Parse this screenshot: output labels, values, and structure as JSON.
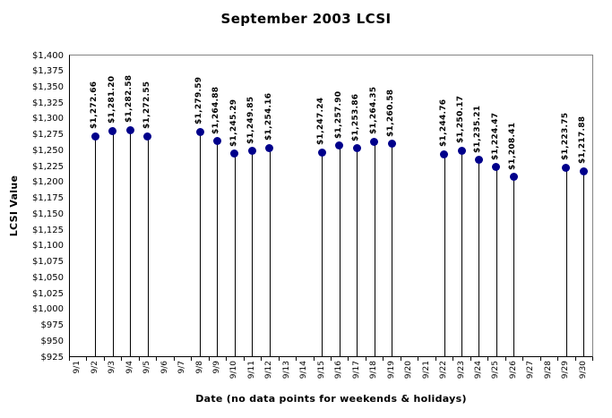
{
  "chart_data": {
    "type": "scatter",
    "title": "September 2003 LCSI",
    "grid": false,
    "legend": false,
    "colors": {
      "marker": "#00008B",
      "drop_line": "#000000",
      "axis_line": "#000000",
      "wall_border": "#848484",
      "text": "#000000"
    },
    "y_axis": {
      "title": "LCSI Value",
      "min": 925,
      "max": 1400,
      "step": 25,
      "tick_labels": [
        "$1,400",
        "$1,375",
        "$1,350",
        "$1,325",
        "$1,300",
        "$1,275",
        "$1,250",
        "$1,225",
        "$1,200",
        "$1,175",
        "$1,150",
        "$1,125",
        "$1,100",
        "$1,075",
        "$1,050",
        "$1,025",
        "$1,000",
        "$975",
        "$950",
        "$925"
      ]
    },
    "x_axis": {
      "title": "Date (no data points for weekends & holidays)",
      "categories": [
        "9/1",
        "9/2",
        "9/3",
        "9/4",
        "9/5",
        "9/6",
        "9/7",
        "9/8",
        "9/9",
        "9/10",
        "9/11",
        "9/12",
        "9/13",
        "9/14",
        "9/15",
        "9/16",
        "9/17",
        "9/18",
        "9/19",
        "9/20",
        "9/21",
        "9/22",
        "9/23",
        "9/24",
        "9/25",
        "9/26",
        "9/27",
        "9/28",
        "9/29",
        "9/30"
      ]
    },
    "points": [
      {
        "date": "9/2",
        "value": 1272.66,
        "label": "$1,272.66"
      },
      {
        "date": "9/3",
        "value": 1281.2,
        "label": "$1,281.20"
      },
      {
        "date": "9/4",
        "value": 1282.58,
        "label": "$1,282.58"
      },
      {
        "date": "9/5",
        "value": 1272.55,
        "label": "$1,272.55"
      },
      {
        "date": "9/8",
        "value": 1279.59,
        "label": "$1,279.59"
      },
      {
        "date": "9/9",
        "value": 1264.88,
        "label": "$1,264.88"
      },
      {
        "date": "9/10",
        "value": 1245.29,
        "label": "$1,245.29"
      },
      {
        "date": "9/11",
        "value": 1249.85,
        "label": "$1,249.85"
      },
      {
        "date": "9/12",
        "value": 1254.16,
        "label": "$1,254.16"
      },
      {
        "date": "9/15",
        "value": 1247.24,
        "label": "$1,247.24"
      },
      {
        "date": "9/16",
        "value": 1257.9,
        "label": "$1,257.90"
      },
      {
        "date": "9/17",
        "value": 1253.86,
        "label": "$1,253.86"
      },
      {
        "date": "9/18",
        "value": 1264.35,
        "label": "$1,264.35"
      },
      {
        "date": "9/19",
        "value": 1260.58,
        "label": "$1,260.58"
      },
      {
        "date": "9/22",
        "value": 1244.76,
        "label": "$1,244.76"
      },
      {
        "date": "9/23",
        "value": 1250.17,
        "label": "$1,250.17"
      },
      {
        "date": "9/24",
        "value": 1235.21,
        "label": "$1,235.21"
      },
      {
        "date": "9/25",
        "value": 1224.47,
        "label": "$1,224.47"
      },
      {
        "date": "9/26",
        "value": 1208.41,
        "label": "$1,208.41"
      },
      {
        "date": "9/29",
        "value": 1223.75,
        "label": "$1,223.75"
      },
      {
        "date": "9/30",
        "value": 1217.88,
        "label": "$1,217.88"
      }
    ]
  }
}
